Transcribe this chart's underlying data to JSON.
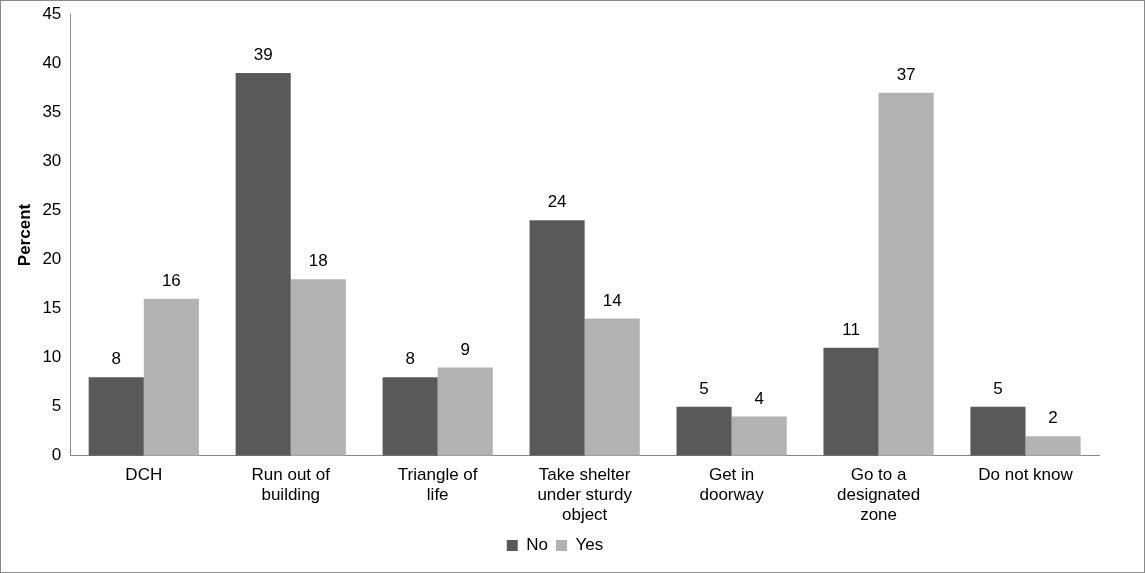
{
  "chart_data": {
    "type": "bar",
    "ylabel": "Percent",
    "categories": [
      "DCH",
      "Run out of building",
      "Triangle of life",
      "Take shelter under sturdy object",
      "Get in doorway",
      "Go to a designated zone",
      "Do not know"
    ],
    "series": [
      {
        "name": "No",
        "color": "#595959",
        "values": [
          8,
          39,
          8,
          24,
          5,
          11,
          5
        ]
      },
      {
        "name": "Yes",
        "color": "#b2b2b2",
        "values": [
          16,
          18,
          9,
          14,
          4,
          37,
          2
        ]
      }
    ],
    "ylim": [
      0,
      45
    ],
    "yticks": [
      0,
      5,
      10,
      15,
      20,
      25,
      30,
      35,
      40,
      45
    ],
    "grid": false,
    "legend": "bottom",
    "data_labels": true
  }
}
